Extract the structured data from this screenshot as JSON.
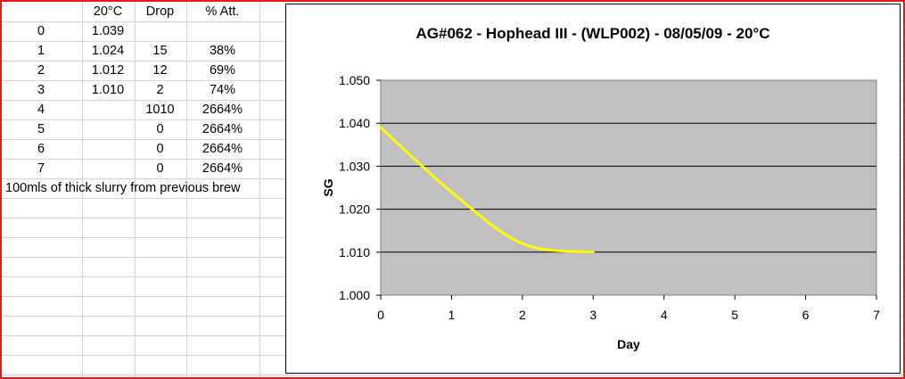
{
  "sheet": {
    "headers": [
      "",
      "20°C",
      "Drop",
      "% Att."
    ],
    "rows": [
      [
        "0",
        "1.039",
        "",
        ""
      ],
      [
        "1",
        "1.024",
        "15",
        "38%"
      ],
      [
        "2",
        "1.012",
        "12",
        "69%"
      ],
      [
        "3",
        "1.010",
        "2",
        "74%"
      ],
      [
        "4",
        "",
        "1010",
        "2664%"
      ],
      [
        "5",
        "",
        "0",
        "2664%"
      ],
      [
        "6",
        "",
        "0",
        "2664%"
      ],
      [
        "7",
        "",
        "0",
        "2664%"
      ]
    ],
    "note": "100mls of thick slurry from previous brew"
  },
  "chart_data": {
    "type": "line",
    "title": "AG#062 - Hophead III - (WLP002) - 08/05/09 - 20°C",
    "xlabel": "Day",
    "ylabel": "SG",
    "xlim": [
      0,
      7
    ],
    "ylim": [
      1.0,
      1.05
    ],
    "x_ticks": [
      "0",
      "1",
      "2",
      "3",
      "4",
      "5",
      "6",
      "7"
    ],
    "y_ticks": [
      "1.000",
      "1.010",
      "1.020",
      "1.030",
      "1.040",
      "1.050"
    ],
    "grid": "horizontal",
    "legend": "none",
    "plot_bg": "#c0c0c0",
    "line_color": "#ffff00",
    "smoothed": true,
    "series": [
      {
        "x": [
          0,
          1,
          2,
          3
        ],
        "values": [
          1.039,
          1.024,
          1.012,
          1.01
        ]
      }
    ]
  }
}
